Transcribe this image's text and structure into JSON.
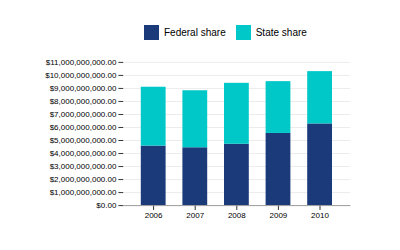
{
  "chart_data": {
    "type": "bar",
    "stacked": true,
    "categories": [
      "2006",
      "2007",
      "2008",
      "2009",
      "2010"
    ],
    "series": [
      {
        "name": "Federal share",
        "color": "#1a3a7a",
        "values": [
          4580000000,
          4450000000,
          4720000000,
          5550000000,
          6280000000
        ]
      },
      {
        "name": "State share",
        "color": "#00c8c8",
        "values": [
          4520000000,
          4380000000,
          4680000000,
          3980000000,
          4020000000
        ]
      }
    ],
    "ylim": [
      0,
      11000000000
    ],
    "yticks": [
      {
        "value": 0,
        "label": "$0.00"
      },
      {
        "value": 1000000000,
        "label": "$1,000,000,000.00"
      },
      {
        "value": 2000000000,
        "label": "$2,000,000,000.00"
      },
      {
        "value": 3000000000,
        "label": "$3,000,000,000.00"
      },
      {
        "value": 4000000000,
        "label": "$4,000,000,000.00"
      },
      {
        "value": 5000000000,
        "label": "$5,000,000,000.00"
      },
      {
        "value": 6000000000,
        "label": "$6,000,000,000.00"
      },
      {
        "value": 7000000000,
        "label": "$7,000,000,000.00"
      },
      {
        "value": 8000000000,
        "label": "$8,000,000,000.00"
      },
      {
        "value": 9000000000,
        "label": "$9,000,000,000.00"
      },
      {
        "value": 10000000000,
        "label": "$10,000,000,000.00"
      },
      {
        "value": 11000000000,
        "label": "$11,000,000,000.00"
      }
    ],
    "grid": true,
    "legend": "top"
  }
}
